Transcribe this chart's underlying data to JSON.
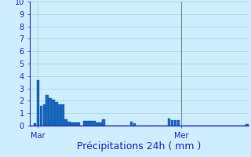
{
  "ylabel_values": [
    0,
    1,
    2,
    3,
    4,
    5,
    6,
    7,
    8,
    9,
    10
  ],
  "ylim": [
    0,
    10
  ],
  "bar_color": "#1a6abf",
  "bar_edge_color": "#1050a0",
  "background_color": "#cceeff",
  "grid_color": "#aacccc",
  "axis_color": "#3333bb",
  "text_color": "#2222cc",
  "vline_color": "#888888",
  "xlabel": "Précipitations 24h ( mm )",
  "xtick_labels": [
    "Mar",
    "Mer"
  ],
  "xtick_positions": [
    2,
    48
  ],
  "vline_position": 48,
  "values": [
    0.0,
    0.2,
    3.7,
    1.6,
    1.7,
    2.5,
    2.2,
    2.1,
    1.9,
    1.7,
    1.7,
    0.5,
    0.3,
    0.25,
    0.25,
    0.25,
    0.0,
    0.35,
    0.35,
    0.35,
    0.35,
    0.25,
    0.25,
    0.5,
    0.0,
    0.0,
    0.0,
    0.0,
    0.0,
    0.0,
    0.0,
    0.0,
    0.3,
    0.2,
    0.0,
    0.0,
    0.0,
    0.0,
    0.0,
    0.0,
    0.0,
    0.0,
    0.0,
    0.0,
    0.6,
    0.45,
    0.45,
    0.45,
    0.0,
    0.0,
    0.0,
    0.0,
    0.0,
    0.0,
    0.0,
    0.0,
    0.0,
    0.0,
    0.0,
    0.0,
    0.0,
    0.0,
    0.0,
    0.0,
    0.0,
    0.0,
    0.0,
    0.0,
    0.0,
    0.1
  ],
  "n_bars": 70,
  "font_size_xlabel": 9,
  "font_size_ytick": 7,
  "font_size_xtick": 7,
  "figsize": [
    3.2,
    2.0
  ],
  "dpi": 100
}
